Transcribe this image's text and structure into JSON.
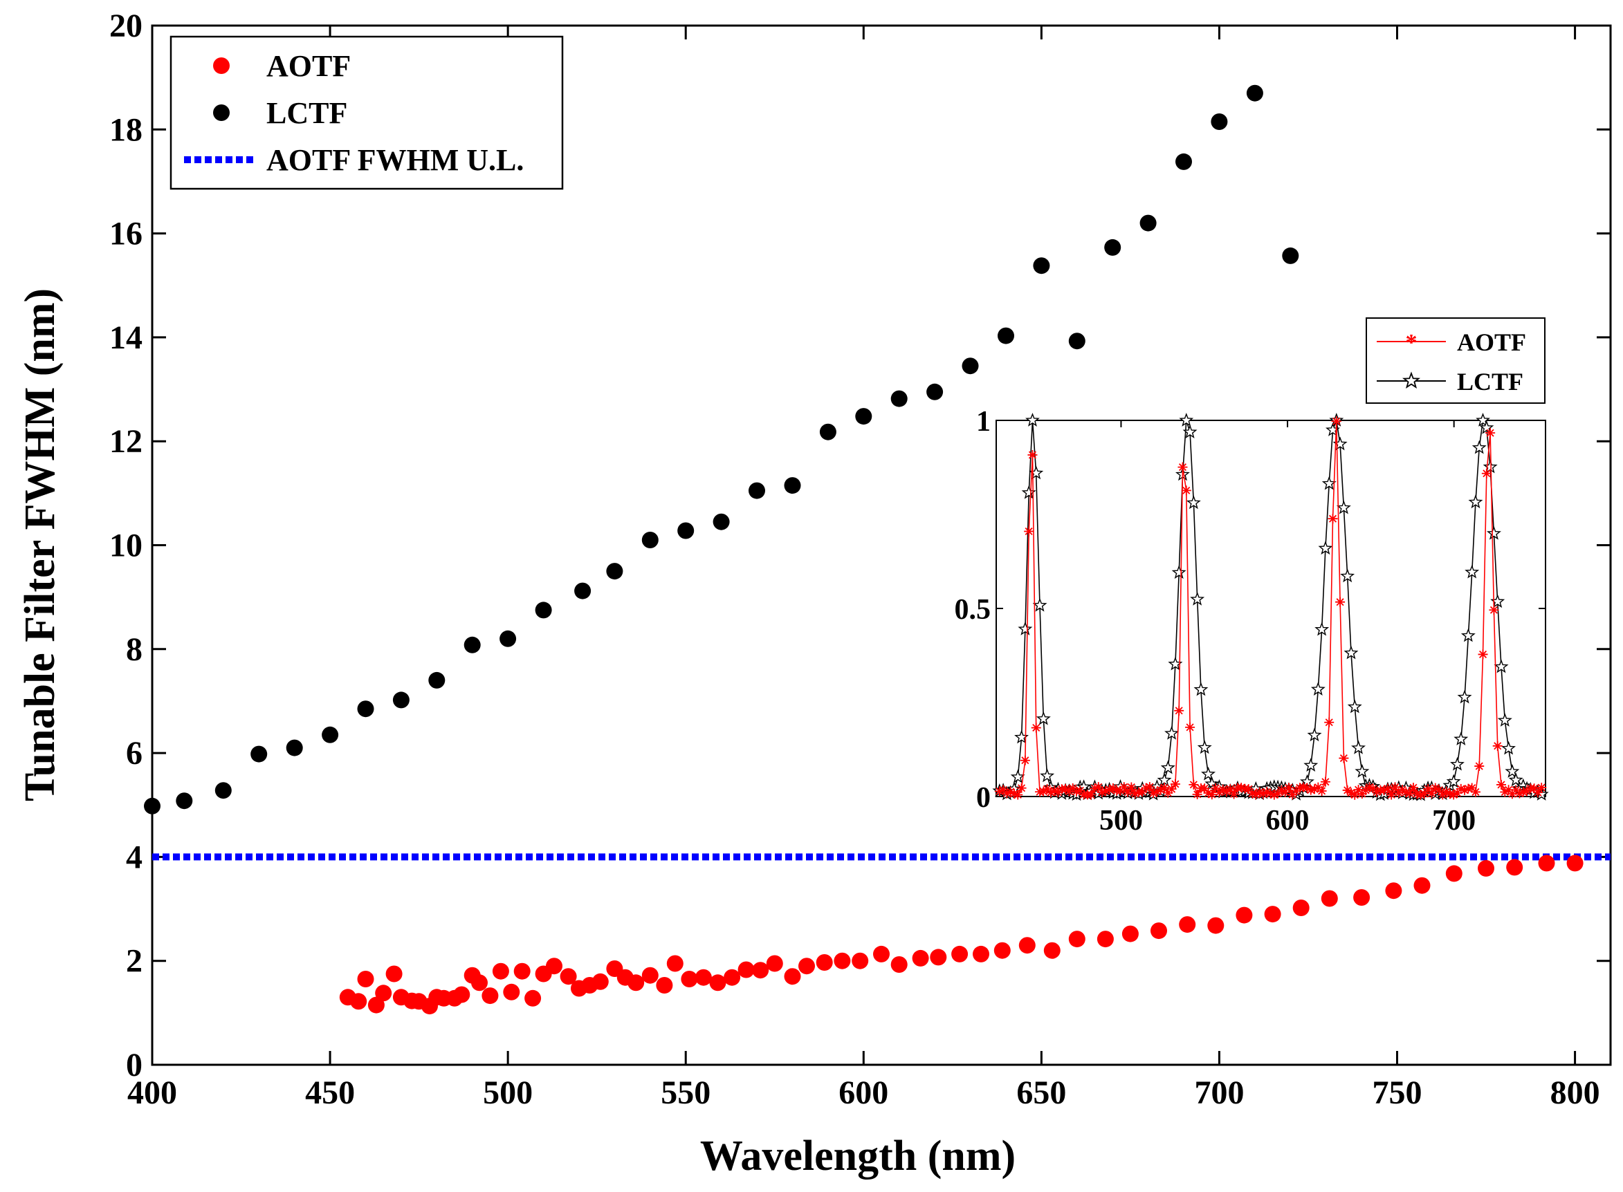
{
  "chart_data": [
    {
      "type": "scatter",
      "xlabel": "Wavelength (nm)",
      "ylabel": "Tunable Filter FWHM (nm)",
      "xlim": [
        400,
        810
      ],
      "ylim": [
        0,
        20
      ],
      "xticks": [
        "400",
        "450",
        "500",
        "550",
        "600",
        "650",
        "700",
        "750",
        "800"
      ],
      "yticks": [
        "0",
        "2",
        "4",
        "6",
        "8",
        "10",
        "12",
        "14",
        "16",
        "18",
        "20"
      ],
      "legend_position": "top-left",
      "series": [
        {
          "name": "AOTF",
          "marker": "circle",
          "color": "#ff0000",
          "x": [
            455,
            458,
            460,
            463,
            465,
            468,
            470,
            473,
            475,
            478,
            480,
            482,
            485,
            487,
            490,
            492,
            495,
            498,
            501,
            504,
            507,
            510,
            513,
            517,
            520,
            523,
            526,
            530,
            533,
            536,
            540,
            544,
            547,
            551,
            555,
            559,
            563,
            567,
            571,
            575,
            580,
            584,
            589,
            594,
            599,
            605,
            610,
            616,
            621,
            627,
            633,
            639,
            646,
            653,
            660,
            668,
            675,
            683,
            691,
            699,
            707,
            715,
            723,
            731,
            740,
            749,
            757,
            766,
            775,
            783,
            792,
            800
          ],
          "y": [
            1.3,
            1.22,
            1.65,
            1.15,
            1.38,
            1.75,
            1.3,
            1.23,
            1.22,
            1.13,
            1.3,
            1.28,
            1.28,
            1.35,
            1.72,
            1.58,
            1.33,
            1.8,
            1.4,
            1.8,
            1.28,
            1.75,
            1.9,
            1.7,
            1.47,
            1.53,
            1.6,
            1.85,
            1.68,
            1.58,
            1.72,
            1.53,
            1.95,
            1.65,
            1.68,
            1.58,
            1.68,
            1.83,
            1.82,
            1.95,
            1.7,
            1.9,
            1.97,
            2.0,
            2.0,
            2.13,
            1.93,
            2.05,
            2.07,
            2.13,
            2.13,
            2.2,
            2.3,
            2.2,
            2.42,
            2.42,
            2.52,
            2.58,
            2.7,
            2.68,
            2.88,
            2.9,
            3.02,
            3.2,
            3.22,
            3.35,
            3.45,
            3.68,
            3.78,
            3.8,
            3.88,
            3.88
          ]
        },
        {
          "name": "LCTF",
          "marker": "circle",
          "color": "#000000",
          "x": [
            400,
            409,
            420,
            430,
            440,
            450,
            460,
            470,
            480,
            490,
            500,
            510,
            521,
            530,
            540,
            550,
            560,
            570,
            580,
            590,
            600,
            610,
            620,
            630,
            640,
            650,
            660,
            670,
            680,
            690,
            700,
            710,
            720
          ],
          "y": [
            4.98,
            5.08,
            5.28,
            5.98,
            6.1,
            6.35,
            6.85,
            7.02,
            7.4,
            8.08,
            8.2,
            8.75,
            9.12,
            9.5,
            10.1,
            10.28,
            10.45,
            11.05,
            11.15,
            12.18,
            12.48,
            12.82,
            12.95,
            13.45,
            14.03,
            15.38,
            13.93,
            15.73,
            16.2,
            17.38,
            18.15,
            18.7,
            15.57
          ]
        },
        {
          "name": "AOTF FWHM U.L.",
          "style": "dotted-line",
          "color": "#0000ff",
          "x": [
            400,
            810
          ],
          "y": [
            4,
            4
          ]
        }
      ]
    },
    {
      "type": "line",
      "inset": true,
      "xlim": [
        425,
        755
      ],
      "ylim": [
        0,
        1
      ],
      "xticks": [
        "500",
        "600",
        "700"
      ],
      "yticks": [
        "0",
        "0.5",
        "1"
      ],
      "legend_position": "top-right",
      "series": [
        {
          "name": "AOTF",
          "marker": "asterisk",
          "color": "#ff0000",
          "peaks": [
            {
              "center": 446,
              "sigma": 1.6
            },
            {
              "center": 538,
              "sigma": 1.8
            },
            {
              "center": 629,
              "sigma": 2.2
            },
            {
              "center": 721,
              "sigma": 2.5
            }
          ]
        },
        {
          "name": "LCTF",
          "marker": "star",
          "color": "#000000",
          "peaks": [
            {
              "center": 447,
              "sigma": 3.5
            },
            {
              "center": 540,
              "sigma": 5.0
            },
            {
              "center": 629,
              "sigma": 6.5
            },
            {
              "center": 718,
              "sigma": 7.0
            }
          ]
        }
      ]
    }
  ]
}
